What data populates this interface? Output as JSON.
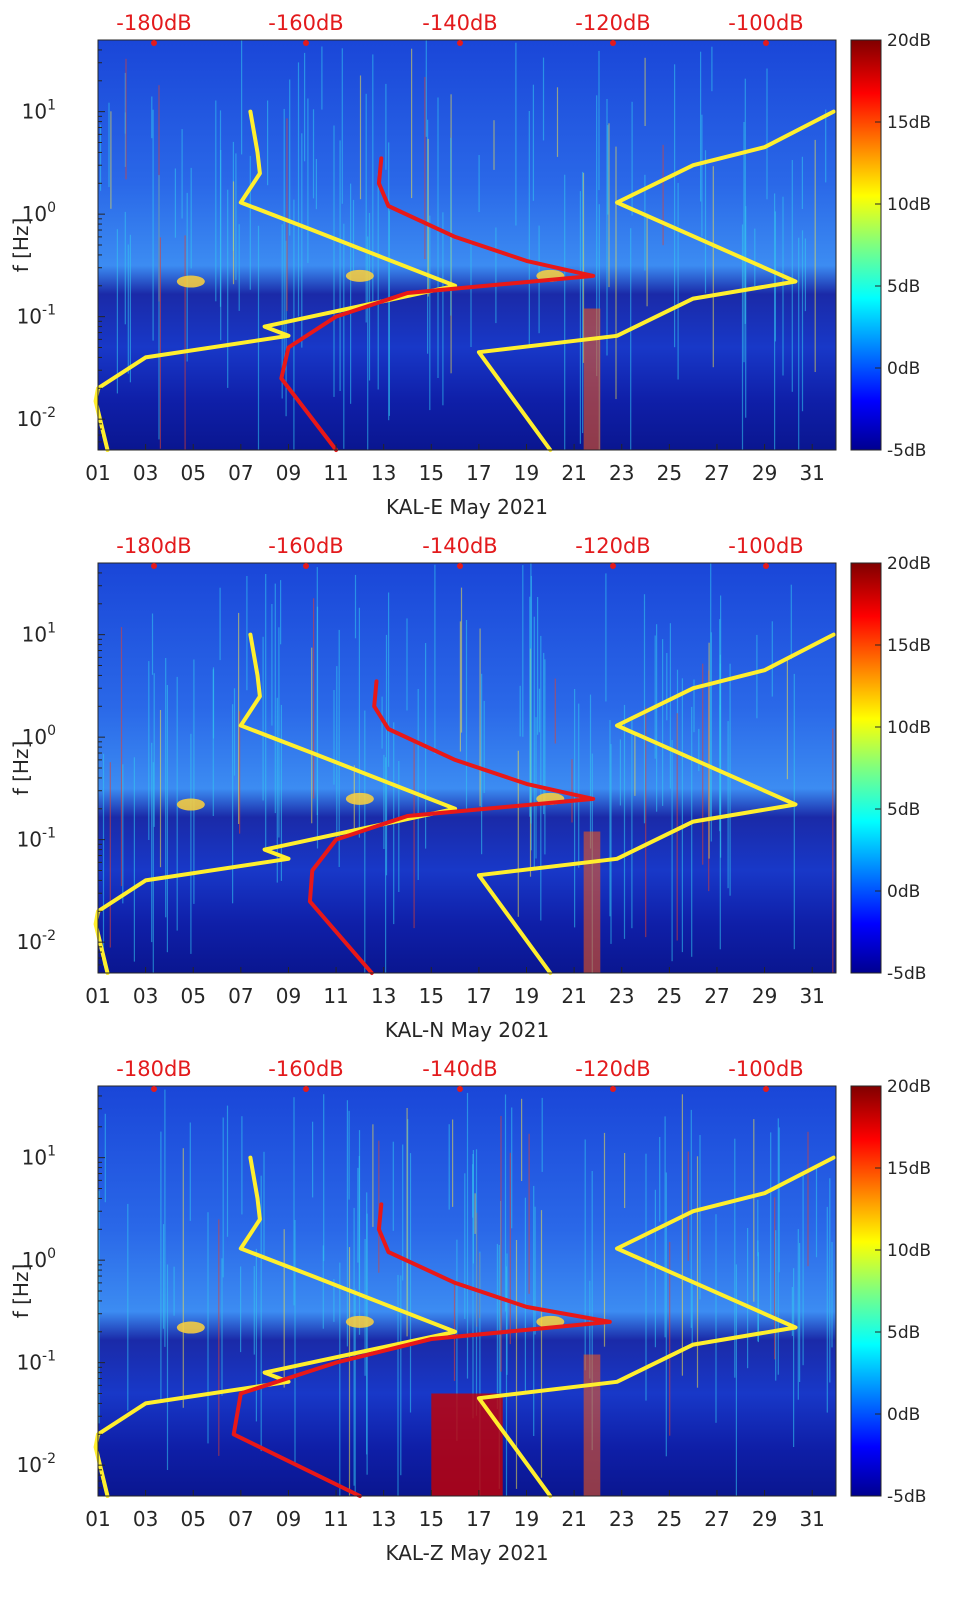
{
  "colors": {
    "red_curve": "#e81818",
    "yellow_curve": "#ffef2e",
    "top_axis_text": "#e31a1c",
    "background_field": "#1b3fd6"
  },
  "chart_data": [
    {
      "type": "heatmap",
      "xlabel": "KAL-E May 2021",
      "ylabel": "f [Hz]",
      "y_scale": "log",
      "ylim": [
        0.005,
        50
      ],
      "xlim": [
        1,
        32
      ],
      "x_ticks": [
        "01",
        "03",
        "05",
        "07",
        "09",
        "11",
        "13",
        "15",
        "17",
        "19",
        "21",
        "23",
        "25",
        "27",
        "29",
        "31"
      ],
      "y_ticks": [
        "10-2",
        "10-1",
        "100",
        "101"
      ],
      "top_ticks": [
        "-180dB",
        "-160dB",
        "-140dB",
        "-120dB",
        "-100dB"
      ],
      "colorbar": {
        "label_ticks": [
          "20dB",
          "15dB",
          "10dB",
          "5dB",
          "0dB",
          "-5dB"
        ],
        "range": [
          -5,
          20
        ]
      },
      "series": [
        {
          "color": "yellow",
          "x": [
            7.4,
            7.7,
            7.8,
            7.0,
            10.0,
            16.0,
            8.0,
            9.0,
            3.0,
            1.0,
            0.9,
            1.4
          ],
          "y": [
            10,
            4,
            2.5,
            1.3,
            0.7,
            0.2,
            0.08,
            0.065,
            0.04,
            0.02,
            0.015,
            0.005
          ]
        },
        {
          "color": "yellow",
          "x": [
            31.9,
            29.0,
            26.0,
            22.8,
            30.3,
            26.0,
            22.8,
            17.0,
            20.0
          ],
          "y": [
            10,
            4.5,
            3,
            1.3,
            0.22,
            0.15,
            0.065,
            0.045,
            0.005
          ]
        },
        {
          "color": "red",
          "x": [
            12.9,
            12.8,
            13.2,
            16.0,
            19.0,
            21.8,
            14.0,
            11.0,
            9.0,
            8.7,
            11.0
          ],
          "y": [
            3.5,
            2.0,
            1.2,
            0.6,
            0.35,
            0.25,
            0.17,
            0.1,
            0.05,
            0.025,
            0.005
          ]
        }
      ]
    },
    {
      "type": "heatmap",
      "xlabel": "KAL-N May 2021",
      "ylabel": "f [Hz]",
      "y_scale": "log",
      "ylim": [
        0.005,
        50
      ],
      "xlim": [
        1,
        32
      ],
      "x_ticks": [
        "01",
        "03",
        "05",
        "07",
        "09",
        "11",
        "13",
        "15",
        "17",
        "19",
        "21",
        "23",
        "25",
        "27",
        "29",
        "31"
      ],
      "y_ticks": [
        "10-2",
        "10-1",
        "100",
        "101"
      ],
      "top_ticks": [
        "-180dB",
        "-160dB",
        "-140dB",
        "-120dB",
        "-100dB"
      ],
      "colorbar": {
        "label_ticks": [
          "20dB",
          "15dB",
          "10dB",
          "5dB",
          "0dB",
          "-5dB"
        ],
        "range": [
          -5,
          20
        ]
      },
      "series": [
        {
          "color": "yellow",
          "x": [
            7.4,
            7.7,
            7.8,
            7.0,
            10.0,
            16.0,
            8.0,
            9.0,
            3.0,
            1.0,
            0.9,
            1.4
          ],
          "y": [
            10,
            4,
            2.5,
            1.3,
            0.7,
            0.2,
            0.08,
            0.065,
            0.04,
            0.02,
            0.015,
            0.005
          ]
        },
        {
          "color": "yellow",
          "x": [
            31.9,
            29.0,
            26.0,
            22.8,
            30.3,
            26.0,
            22.8,
            17.0,
            20.0
          ],
          "y": [
            10,
            4.5,
            3,
            1.3,
            0.22,
            0.15,
            0.065,
            0.045,
            0.005
          ]
        },
        {
          "color": "red",
          "x": [
            12.7,
            12.6,
            13.2,
            16.0,
            19.0,
            21.8,
            14.0,
            11.0,
            10.0,
            9.9,
            12.5
          ],
          "y": [
            3.5,
            2.0,
            1.2,
            0.6,
            0.35,
            0.25,
            0.17,
            0.1,
            0.05,
            0.025,
            0.005
          ]
        }
      ]
    },
    {
      "type": "heatmap",
      "xlabel": "KAL-Z May 2021",
      "ylabel": "f [Hz]",
      "y_scale": "log",
      "ylim": [
        0.005,
        50
      ],
      "xlim": [
        1,
        32
      ],
      "x_ticks": [
        "01",
        "03",
        "05",
        "07",
        "09",
        "11",
        "13",
        "15",
        "17",
        "19",
        "21",
        "23",
        "25",
        "27",
        "29",
        "31"
      ],
      "y_ticks": [
        "10-2",
        "10-1",
        "100",
        "101"
      ],
      "top_ticks": [
        "-180dB",
        "-160dB",
        "-140dB",
        "-120dB",
        "-100dB"
      ],
      "colorbar": {
        "label_ticks": [
          "20dB",
          "15dB",
          "10dB",
          "5dB",
          "0dB",
          "-5dB"
        ],
        "range": [
          -5,
          20
        ]
      },
      "series": [
        {
          "color": "yellow",
          "x": [
            7.4,
            7.7,
            7.8,
            7.0,
            10.0,
            16.0,
            8.0,
            9.0,
            3.0,
            1.0,
            0.9,
            1.4
          ],
          "y": [
            10,
            4,
            2.5,
            1.3,
            0.7,
            0.2,
            0.08,
            0.065,
            0.04,
            0.02,
            0.015,
            0.005
          ]
        },
        {
          "color": "yellow",
          "x": [
            31.9,
            29.0,
            26.0,
            22.8,
            30.3,
            26.0,
            22.8,
            17.0,
            20.0
          ],
          "y": [
            10,
            4.5,
            3,
            1.3,
            0.22,
            0.15,
            0.065,
            0.045,
            0.005
          ]
        },
        {
          "color": "red",
          "x": [
            12.9,
            12.8,
            13.2,
            16.0,
            19.0,
            22.5,
            15.0,
            11.0,
            7.0,
            6.7,
            12.0
          ],
          "y": [
            3.5,
            2.0,
            1.2,
            0.6,
            0.35,
            0.25,
            0.17,
            0.1,
            0.05,
            0.02,
            0.005
          ]
        }
      ]
    }
  ]
}
